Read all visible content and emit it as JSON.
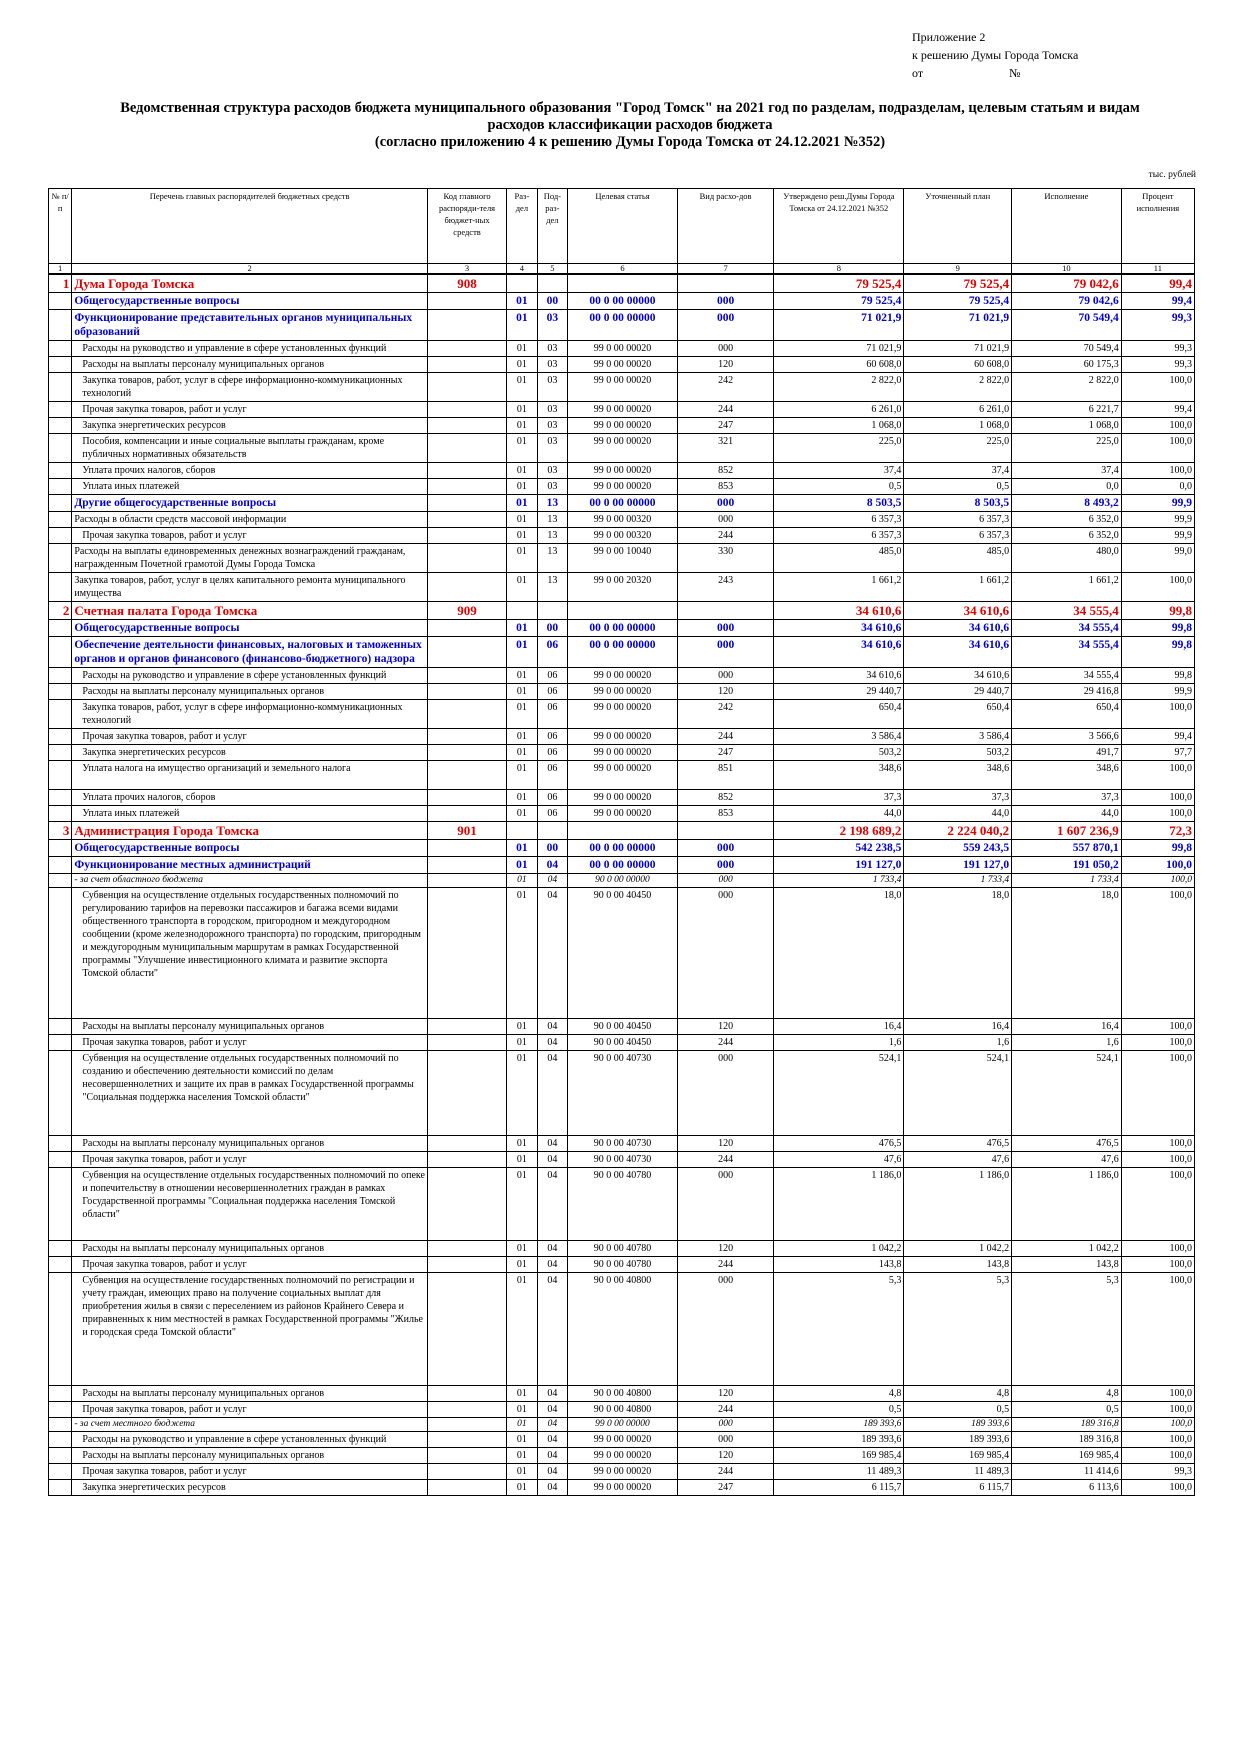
{
  "header": {
    "appendix_line1": "Приложение 2",
    "appendix_line2": "к решению Думы Города Томска",
    "appendix_from": "от",
    "appendix_no": "№",
    "title_line1": "Ведомственная структура расходов бюджета муниципального образования \"Город Томск\" на 2021 год по разделам, подразделам, целевым статьям и видам",
    "title_line2": "расходов классификации расходов бюджета",
    "title_line3": "(согласно приложению 4 к решению Думы Города Томска от 24.12.2021 №352)",
    "units": "тыс. рублей"
  },
  "columns": {
    "no": "№ п/п",
    "name": "Перечень главных распорядителей бюджетных средств",
    "code": "Код главного распоряди-теля бюджет-ных средств",
    "section": "Раз-дел",
    "subsection": "Под-раз-дел",
    "target": "Целевая статья",
    "type": "Вид расхо-дов",
    "approved": "Утверждено реш.Думы Города Томска от 24.12.2021 №352",
    "plan": "Уточненный план",
    "exec": "Исполнение",
    "percent": "Процент исполнения",
    "nums": [
      "1",
      "2",
      "3",
      "4",
      "5",
      "6",
      "7",
      "8",
      "9",
      "10",
      "11"
    ]
  },
  "rows": [
    {
      "k": "dep",
      "no": "1",
      "name": "Дума Города Томска",
      "code": "908",
      "a": "79 525,4",
      "p": "79 525,4",
      "e": "79 042,6",
      "pc": "99,4"
    },
    {
      "k": "sec",
      "name": "Общегосударственные вопросы",
      "s": "01",
      "ss": "00",
      "t": "00 0 00 00000",
      "v": "000",
      "a": "79 525,4",
      "p": "79 525,4",
      "e": "79 042,6",
      "pc": "99,4"
    },
    {
      "k": "sec",
      "name": "Функционирование представительных органов муниципальных образований",
      "s": "01",
      "ss": "03",
      "t": "00 0 00 00000",
      "v": "000",
      "a": "71 021,9",
      "p": "71 021,9",
      "e": "70 549,4",
      "pc": "99,3"
    },
    {
      "k": "ind",
      "name": "Расходы на руководство и управление в сфере установленных функций",
      "s": "01",
      "ss": "03",
      "t": "99 0 00 00020",
      "v": "000",
      "a": "71 021,9",
      "p": "71 021,9",
      "e": "70 549,4",
      "pc": "99,3"
    },
    {
      "k": "ind",
      "name": "Расходы на выплаты персоналу муниципальных органов",
      "s": "01",
      "ss": "03",
      "t": "99 0 00 00020",
      "v": "120",
      "a": "60 608,0",
      "p": "60 608,0",
      "e": "60 175,3",
      "pc": "99,3"
    },
    {
      "k": "ind",
      "name": "Закупка товаров, работ, услуг в сфере информационно-коммуникационных технологий",
      "s": "01",
      "ss": "03",
      "t": "99 0 00 00020",
      "v": "242",
      "a": "2 822,0",
      "p": "2 822,0",
      "e": "2 822,0",
      "pc": "100,0"
    },
    {
      "k": "ind",
      "name": "Прочая закупка товаров, работ и услуг",
      "s": "01",
      "ss": "03",
      "t": "99 0 00 00020",
      "v": "244",
      "a": "6 261,0",
      "p": "6 261,0",
      "e": "6 221,7",
      "pc": "99,4"
    },
    {
      "k": "ind",
      "name": "Закупка энергетических ресурсов",
      "s": "01",
      "ss": "03",
      "t": "99 0 00 00020",
      "v": "247",
      "a": "1 068,0",
      "p": "1 068,0",
      "e": "1 068,0",
      "pc": "100,0"
    },
    {
      "k": "ind",
      "name": "Пособия, компенсации и иные социальные выплаты гражданам, кроме публичных нормативных обязательств",
      "s": "01",
      "ss": "03",
      "t": "99 0 00 00020",
      "v": "321",
      "a": "225,0",
      "p": "225,0",
      "e": "225,0",
      "pc": "100,0"
    },
    {
      "k": "ind",
      "name": "Уплата прочих налогов, сборов",
      "s": "01",
      "ss": "03",
      "t": "99 0 00 00020",
      "v": "852",
      "a": "37,4",
      "p": "37,4",
      "e": "37,4",
      "pc": "100,0"
    },
    {
      "k": "ind",
      "name": "Уплата иных платежей",
      "s": "01",
      "ss": "03",
      "t": "99 0 00 00020",
      "v": "853",
      "a": "0,5",
      "p": "0,5",
      "e": "0,0",
      "pc": "0,0"
    },
    {
      "k": "sec",
      "name": "Другие общегосударственные вопросы",
      "s": "01",
      "ss": "13",
      "t": "00 0 00 00000",
      "v": "000",
      "a": "8 503,5",
      "p": "8 503,5",
      "e": "8 493,2",
      "pc": "99,9"
    },
    {
      "k": "pl",
      "name": "Расходы в области средств массовой информации",
      "s": "01",
      "ss": "13",
      "t": "99 0 00 00320",
      "v": "000",
      "a": "6 357,3",
      "p": "6 357,3",
      "e": "6 352,0",
      "pc": "99,9"
    },
    {
      "k": "ind",
      "name": "Прочая закупка товаров, работ и услуг",
      "s": "01",
      "ss": "13",
      "t": "99 0 00 00320",
      "v": "244",
      "a": "6 357,3",
      "p": "6 357,3",
      "e": "6 352,0",
      "pc": "99,9"
    },
    {
      "k": "pl",
      "name": "Расходы на выплаты единовременных денежных вознаграждений гражданам, награжденным Почетной грамотой Думы Города Томска",
      "s": "01",
      "ss": "13",
      "t": "99 0 00 10040",
      "v": "330",
      "a": "485,0",
      "p": "485,0",
      "e": "480,0",
      "pc": "99,0"
    },
    {
      "k": "pl",
      "name": "Закупка товаров, работ, услуг в целях капитального ремонта муниципального имущества",
      "s": "01",
      "ss": "13",
      "t": "99 0 00 20320",
      "v": "243",
      "a": "1 661,2",
      "p": "1 661,2",
      "e": "1 661,2",
      "pc": "100,0"
    },
    {
      "k": "dep",
      "no": "2",
      "name": "Счетная палата Города Томска",
      "code": "909",
      "a": "34 610,6",
      "p": "34 610,6",
      "e": "34 555,4",
      "pc": "99,8"
    },
    {
      "k": "sec",
      "name": "Общегосударственные вопросы",
      "s": "01",
      "ss": "00",
      "t": "00 0 00 00000",
      "v": "000",
      "a": "34 610,6",
      "p": "34 610,6",
      "e": "34 555,4",
      "pc": "99,8"
    },
    {
      "k": "sec",
      "name": "Обеспечение деятельности финансовых, налоговых и таможенных органов и органов финансового (финансово-бюджетного) надзора",
      "s": "01",
      "ss": "06",
      "t": "00 0 00 00000",
      "v": "000",
      "a": "34 610,6",
      "p": "34 610,6",
      "e": "34 555,4",
      "pc": "99,8"
    },
    {
      "k": "ind",
      "name": "Расходы на руководство и управление в сфере установленных функций",
      "s": "01",
      "ss": "06",
      "t": "99 0 00 00020",
      "v": "000",
      "a": "34 610,6",
      "p": "34 610,6",
      "e": "34 555,4",
      "pc": "99,8"
    },
    {
      "k": "ind",
      "name": "Расходы на выплаты персоналу муниципальных органов",
      "s": "01",
      "ss": "06",
      "t": "99 0 00 00020",
      "v": "120",
      "a": "29 440,7",
      "p": "29 440,7",
      "e": "29 416,8",
      "pc": "99,9"
    },
    {
      "k": "ind",
      "name": "Закупка товаров, работ, услуг в сфере информационно-коммуникационных технологий",
      "s": "01",
      "ss": "06",
      "t": "99 0 00 00020",
      "v": "242",
      "a": "650,4",
      "p": "650,4",
      "e": "650,4",
      "pc": "100,0"
    },
    {
      "k": "ind",
      "name": "Прочая закупка товаров, работ и услуг",
      "s": "01",
      "ss": "06",
      "t": "99 0 00 00020",
      "v": "244",
      "a": "3 586,4",
      "p": "3 586,4",
      "e": "3 566,6",
      "pc": "99,4"
    },
    {
      "k": "ind",
      "name": "Закупка энергетических ресурсов",
      "s": "01",
      "ss": "06",
      "t": "99 0 00 00020",
      "v": "247",
      "a": "503,2",
      "p": "503,2",
      "e": "491,7",
      "pc": "97,7"
    },
    {
      "k": "ind",
      "name": "Уплата налога на имущество организаций и земельного налога",
      "s": "01",
      "ss": "06",
      "t": "99 0 00 00020",
      "v": "851",
      "a": "348,6",
      "p": "348,6",
      "e": "348,6",
      "pc": "100,0",
      "tall": true
    },
    {
      "k": "ind",
      "name": "Уплата прочих налогов, сборов",
      "s": "01",
      "ss": "06",
      "t": "99 0 00 00020",
      "v": "852",
      "a": "37,3",
      "p": "37,3",
      "e": "37,3",
      "pc": "100,0"
    },
    {
      "k": "ind",
      "name": "Уплата иных платежей",
      "s": "01",
      "ss": "06",
      "t": "99 0 00 00020",
      "v": "853",
      "a": "44,0",
      "p": "44,0",
      "e": "44,0",
      "pc": "100,0"
    },
    {
      "k": "dep",
      "no": "3",
      "name": "Администрация Города Томска",
      "code": "901",
      "a": "2 198 689,2",
      "p": "2 224 040,2",
      "e": "1 607 236,9",
      "pc": "72,3"
    },
    {
      "k": "sec",
      "name": "Общегосударственные вопросы",
      "s": "01",
      "ss": "00",
      "t": "00 0 00 00000",
      "v": "000",
      "a": "542 238,5",
      "p": "559 243,5",
      "e": "557 870,1",
      "pc": "99,8"
    },
    {
      "k": "sec",
      "name": "Функционирование местных администраций",
      "s": "01",
      "ss": "04",
      "t": "00 0 00 00000",
      "v": "000",
      "a": "191 127,0",
      "p": "191 127,0",
      "e": "191 050,2",
      "pc": "100,0"
    },
    {
      "k": "itl",
      "name": "- за счет областного бюджета",
      "s": "01",
      "ss": "04",
      "t": "90 0 00 00000",
      "v": "000",
      "a": "1 733,4",
      "p": "1 733,4",
      "e": "1 733,4",
      "pc": "100,0"
    },
    {
      "k": "ind",
      "name": "Субвенция на осуществление отдельных государственных полномочий по регулированию тарифов на перевозки пассажиров и багажа всеми видами общественного транспорта в городском, пригородном и междугородном сообщении (кроме железнодорожного транспорта) по городским, пригородным и междугородным муниципальным маршрутам в рамках Государственной программы \"Улучшение инвестиционного климата и развитие экспорта Томской области\"",
      "s": "01",
      "ss": "04",
      "t": "90 0 00 40450",
      "v": "000",
      "a": "18,0",
      "p": "18,0",
      "e": "18,0",
      "pc": "100,0",
      "h": 128
    },
    {
      "k": "ind",
      "name": "Расходы на выплаты персоналу муниципальных органов",
      "s": "01",
      "ss": "04",
      "t": "90 0 00 40450",
      "v": "120",
      "a": "16,4",
      "p": "16,4",
      "e": "16,4",
      "pc": "100,0"
    },
    {
      "k": "ind",
      "name": "Прочая закупка товаров, работ и услуг",
      "s": "01",
      "ss": "04",
      "t": "90 0 00 40450",
      "v": "244",
      "a": "1,6",
      "p": "1,6",
      "e": "1,6",
      "pc": "100,0"
    },
    {
      "k": "ind",
      "name": "Субвенция на осуществление отдельных государственных полномочий по созданию и обеспечению деятельности комиссий по делам несовершеннолетних и защите их прав в рамках Государственной программы \"Социальная поддержка населения Томской области\"",
      "s": "01",
      "ss": "04",
      "t": "90 0 00 40730",
      "v": "000",
      "a": "524,1",
      "p": "524,1",
      "e": "524,1",
      "pc": "100,0",
      "h": 82
    },
    {
      "k": "ind",
      "name": "Расходы на выплаты персоналу муниципальных органов",
      "s": "01",
      "ss": "04",
      "t": "90 0 00 40730",
      "v": "120",
      "a": "476,5",
      "p": "476,5",
      "e": "476,5",
      "pc": "100,0"
    },
    {
      "k": "ind",
      "name": "Прочая закупка товаров, работ и услуг",
      "s": "01",
      "ss": "04",
      "t": "90 0 00 40730",
      "v": "244",
      "a": "47,6",
      "p": "47,6",
      "e": "47,6",
      "pc": "100,0"
    },
    {
      "k": "ind",
      "name": "Субвенция на осуществление отдельных государственных полномочий по опеке и попечительству в отношении несовершеннолетних граждан в рамках Государственной программы \"Социальная поддержка населения Томской области\"",
      "s": "01",
      "ss": "04",
      "t": "90 0 00 40780",
      "v": "000",
      "a": "1 186,0",
      "p": "1 186,0",
      "e": "1 186,0",
      "pc": "100,0",
      "h": 70
    },
    {
      "k": "ind",
      "name": "Расходы на выплаты персоналу муниципальных органов",
      "s": "01",
      "ss": "04",
      "t": "90 0 00 40780",
      "v": "120",
      "a": "1 042,2",
      "p": "1 042,2",
      "e": "1 042,2",
      "pc": "100,0"
    },
    {
      "k": "ind",
      "name": "Прочая закупка товаров, работ и услуг",
      "s": "01",
      "ss": "04",
      "t": "90 0 00 40780",
      "v": "244",
      "a": "143,8",
      "p": "143,8",
      "e": "143,8",
      "pc": "100,0"
    },
    {
      "k": "ind",
      "name": "Субвенция на осуществление государственных полномочий по регистрации и учету граждан, имеющих право на получение социальных выплат для приобретения жилья в связи с переселением из районов Крайнего Севера и приравненных к ним местностей в рамках Государственной программы \"Жилье и городская среда Томской области\"",
      "s": "01",
      "ss": "04",
      "t": "90 0 00 40800",
      "v": "000",
      "a": "5,3",
      "p": "5,3",
      "e": "5,3",
      "pc": "100,0",
      "h": 110
    },
    {
      "k": "ind",
      "name": "Расходы на выплаты персоналу муниципальных органов",
      "s": "01",
      "ss": "04",
      "t": "90 0 00 40800",
      "v": "120",
      "a": "4,8",
      "p": "4,8",
      "e": "4,8",
      "pc": "100,0"
    },
    {
      "k": "ind",
      "name": "Прочая закупка товаров, работ и услуг",
      "s": "01",
      "ss": "04",
      "t": "90 0 00 40800",
      "v": "244",
      "a": "0,5",
      "p": "0,5",
      "e": "0,5",
      "pc": "100,0"
    },
    {
      "k": "itl",
      "name": "- за счет местного бюджета",
      "s": "01",
      "ss": "04",
      "t": "99 0 00 00000",
      "v": "000",
      "a": "189 393,6",
      "p": "189 393,6",
      "e": "189 316,8",
      "pc": "100,0"
    },
    {
      "k": "ind",
      "name": "Расходы на руководство и управление в сфере установленных функций",
      "s": "01",
      "ss": "04",
      "t": "99 0 00 00020",
      "v": "000",
      "a": "189 393,6",
      "p": "189 393,6",
      "e": "189 316,8",
      "pc": "100,0"
    },
    {
      "k": "ind",
      "name": "Расходы на выплаты персоналу муниципальных органов",
      "s": "01",
      "ss": "04",
      "t": "99 0 00 00020",
      "v": "120",
      "a": "169 985,4",
      "p": "169 985,4",
      "e": "169 985,4",
      "pc": "100,0"
    },
    {
      "k": "ind",
      "name": "Прочая закупка товаров, работ и услуг",
      "s": "01",
      "ss": "04",
      "t": "99 0 00 00020",
      "v": "244",
      "a": "11 489,3",
      "p": "11 489,3",
      "e": "11 414,6",
      "pc": "99,3"
    },
    {
      "k": "ind",
      "name": "Закупка энергетических ресурсов",
      "s": "01",
      "ss": "04",
      "t": "99 0 00 00020",
      "v": "247",
      "a": "6 115,7",
      "p": "6 115,7",
      "e": "6 113,6",
      "pc": "100,0"
    }
  ]
}
